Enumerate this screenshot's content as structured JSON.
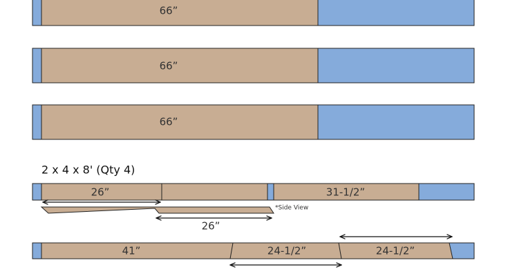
{
  "long_boards": [
    {
      "label": "66”"
    },
    {
      "label": "66”"
    },
    {
      "label": "66”"
    }
  ],
  "section": {
    "title": "2 x 4 x 8' (Qty 4)"
  },
  "board_a": {
    "pieces": [
      "26”",
      "31-1/2”"
    ],
    "side_view_label": "26”",
    "note": "*Side View"
  },
  "board_b": {
    "pieces": [
      "41”",
      "24-1/2”",
      "24-1/2”"
    ]
  }
}
